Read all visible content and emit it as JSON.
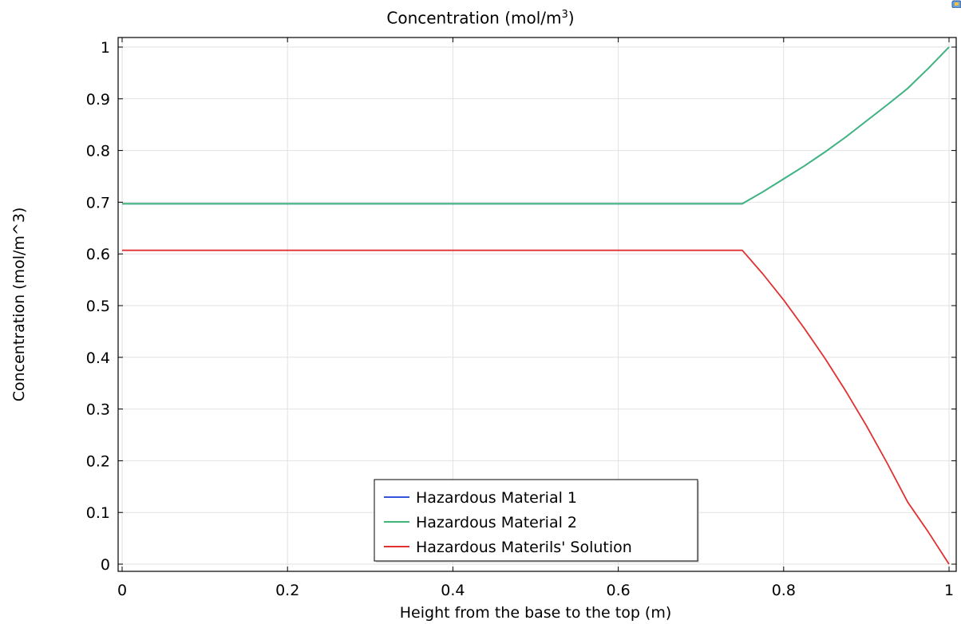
{
  "chart_data": {
    "type": "line",
    "title_main": "Concentration (mol/m",
    "title_sup": "3",
    "title_tail": ")",
    "xlabel": "Height from the base to the top (m)",
    "ylabel": "Concentration (mol/m^3)",
    "xlim": [
      0,
      1
    ],
    "ylim": [
      0,
      1
    ],
    "xticks": [
      0,
      0.2,
      0.4,
      0.6,
      0.8,
      1
    ],
    "xtick_labels": [
      "0",
      "0.2",
      "0.4",
      "0.6",
      "0.8",
      "1"
    ],
    "yticks": [
      0,
      0.1,
      0.2,
      0.3,
      0.4,
      0.5,
      0.6,
      0.7,
      0.8,
      0.9,
      1
    ],
    "ytick_labels": [
      "0",
      "0.1",
      "0.2",
      "0.3",
      "0.4",
      "0.5",
      "0.6",
      "0.7",
      "0.8",
      "0.9",
      "1"
    ],
    "grid": true,
    "legend_position": "bottom-center",
    "series": [
      {
        "name": "Hazardous Material 1",
        "color": "#3355dd",
        "x": [
          0,
          0.75,
          0.775,
          0.8,
          0.825,
          0.85,
          0.875,
          0.9,
          0.925,
          0.95,
          0.975,
          1
        ],
        "y": [
          0.697,
          0.697,
          0.72,
          0.745,
          0.77,
          0.797,
          0.826,
          0.857,
          0.888,
          0.92,
          0.959,
          1.0
        ]
      },
      {
        "name": "Hazardous Material 2",
        "color": "#3cb878",
        "x": [
          0,
          0.75,
          0.775,
          0.8,
          0.825,
          0.85,
          0.875,
          0.9,
          0.925,
          0.95,
          0.975,
          1
        ],
        "y": [
          0.697,
          0.697,
          0.72,
          0.745,
          0.77,
          0.797,
          0.826,
          0.857,
          0.888,
          0.92,
          0.959,
          1.0
        ]
      },
      {
        "name": "Hazardous Materils' Solution",
        "color": "#e03030",
        "x": [
          0,
          0.75,
          0.775,
          0.8,
          0.825,
          0.85,
          0.875,
          0.9,
          0.925,
          0.95,
          0.975,
          1
        ],
        "y": [
          0.607,
          0.607,
          0.561,
          0.511,
          0.456,
          0.398,
          0.335,
          0.268,
          0.196,
          0.12,
          0.062,
          0.0
        ]
      }
    ]
  }
}
